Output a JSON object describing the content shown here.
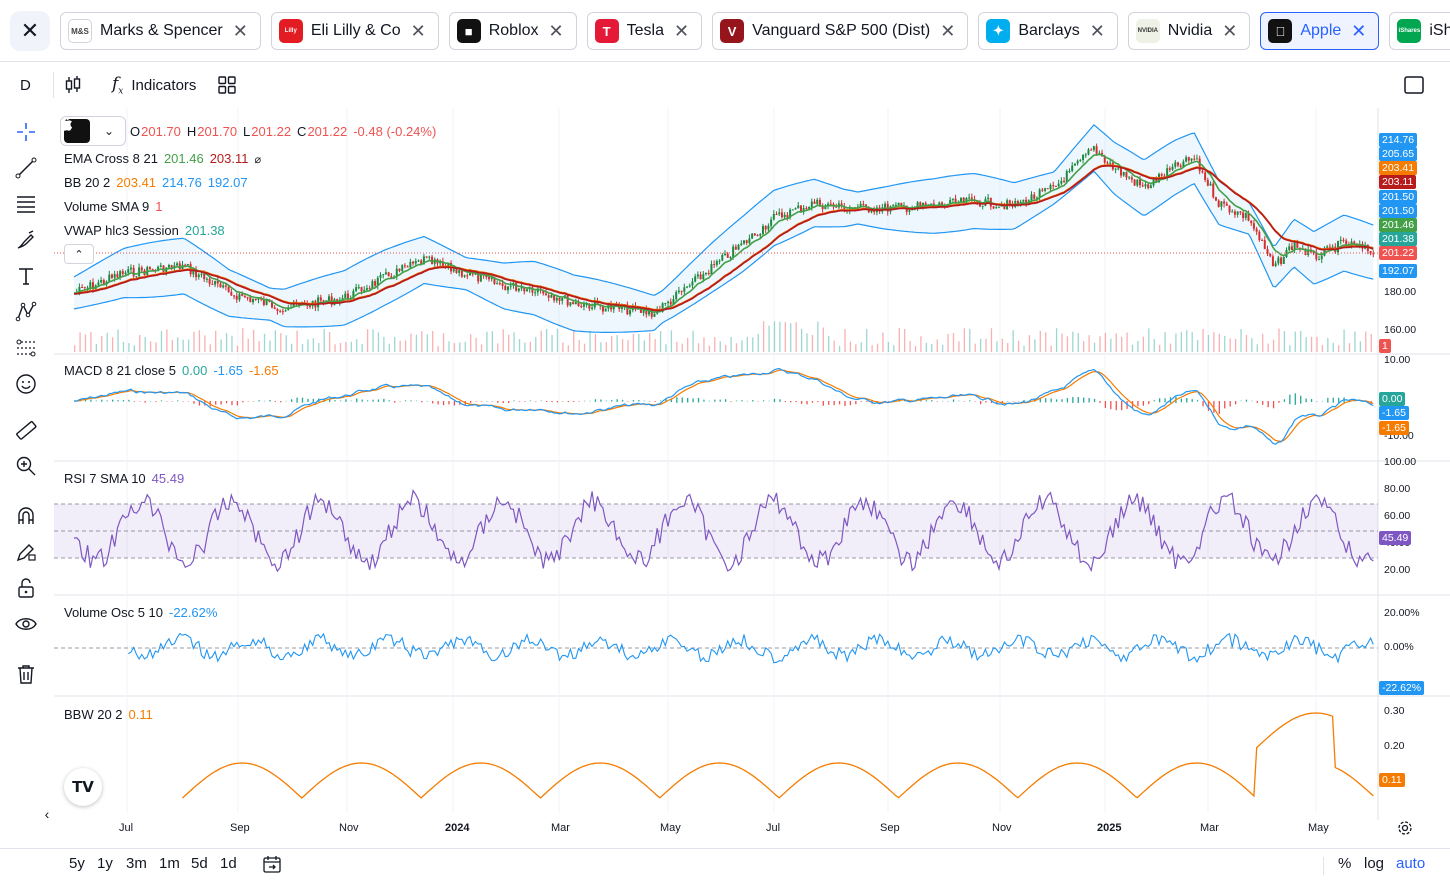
{
  "tabs": [
    {
      "label": "Marks & Spencer",
      "logo": "M&S",
      "color": "#ffffff",
      "fg": "#444"
    },
    {
      "label": "Eli Lilly & Co",
      "logo": "Lilly",
      "color": "#e31b23",
      "fg": "#fff"
    },
    {
      "label": "Roblox",
      "logo": "■",
      "color": "#111111",
      "fg": "#fff"
    },
    {
      "label": "Tesla",
      "logo": "T",
      "color": "#e31937",
      "fg": "#fff"
    },
    {
      "label": "Vanguard S&P 500 (Dist)",
      "logo": "V",
      "color": "#96151d",
      "fg": "#fff"
    },
    {
      "label": "Barclays",
      "logo": "✦",
      "color": "#00aeef",
      "fg": "#fff"
    },
    {
      "label": "Nvidia",
      "logo": "NVIDIA",
      "color": "#eef2e6",
      "fg": "#333"
    },
    {
      "label": "Apple",
      "logo": "",
      "color": "#111111",
      "fg": "#fff",
      "active": true
    },
    {
      "label": "iShares",
      "logo": "iShares",
      "color": "#00a650",
      "fg": "#fff"
    }
  ],
  "toolbar": {
    "interval": "D",
    "indicators_label": "Indicators"
  },
  "ohlc": {
    "o": "201.70",
    "h": "201.70",
    "l": "201.22",
    "c": "201.22",
    "change": "-0.48 (-0.24%)"
  },
  "legends": {
    "ema": {
      "label": "EMA Cross 8 21",
      "v1": "201.46",
      "v2": "203.11",
      "extra": "⌀"
    },
    "bb": {
      "label": "BB 20 2",
      "v1": "203.41",
      "v2": "214.76",
      "v3": "192.07"
    },
    "vol": {
      "label": "Volume SMA 9",
      "v1": "1"
    },
    "vwap": {
      "label": "VWAP hlc3 Session",
      "v1": "201.38"
    },
    "macd": {
      "label": "MACD 8 21 close 5",
      "v1": "0.00",
      "v2": "-1.65",
      "v3": "-1.65"
    },
    "rsi": {
      "label": "RSI 7 SMA 10",
      "v1": "45.49"
    },
    "vosc": {
      "label": "Volume Osc 5 10",
      "v1": "-22.62%"
    },
    "bbw": {
      "label": "BBW 20 2",
      "v1": "0.11"
    }
  },
  "price_axis": {
    "ticks": [
      "180.00",
      "160.00"
    ],
    "labels": [
      {
        "text": "214.76",
        "color": "#2196f3"
      },
      {
        "text": "205.65",
        "color": "#2196f3"
      },
      {
        "text": "203.41",
        "color": "#f57c00"
      },
      {
        "text": "203.11",
        "color": "#b71c1c"
      },
      {
        "text": "201.50",
        "color": "#2196f3"
      },
      {
        "text": "201.50",
        "color": "#2196f3"
      },
      {
        "text": "201.46",
        "color": "#43a047"
      },
      {
        "text": "201.38",
        "color": "#26a69a"
      },
      {
        "text": "201.22",
        "color": "#ef5350"
      },
      {
        "text": "192.07",
        "color": "#2196f3"
      }
    ],
    "volume_label": "1"
  },
  "macd_axis": {
    "ticks": [
      "10.00",
      "-10.00"
    ],
    "labels": [
      {
        "text": "0.00",
        "color": "#26a69a"
      },
      {
        "text": "-1.65",
        "color": "#2196f3"
      },
      {
        "text": "-1.65",
        "color": "#f57c00"
      }
    ]
  },
  "rsi_axis": {
    "ticks": [
      "100.00",
      "80.00",
      "60.00",
      "40.00",
      "20.00"
    ],
    "label": "45.49"
  },
  "vosc_axis": {
    "ticks": [
      "20.00%",
      "0.00%"
    ],
    "label": "-22.62%"
  },
  "bbw_axis": {
    "ticks": [
      "0.30",
      "0.20"
    ],
    "label": "0.11"
  },
  "time_axis": [
    "Jul",
    "Sep",
    "Nov",
    "2024",
    "Mar",
    "May",
    "Jul",
    "Sep",
    "Nov",
    "2025",
    "Mar",
    "May"
  ],
  "ranges": [
    "5y",
    "1y",
    "3m",
    "1m",
    "5d",
    "1d"
  ],
  "scale_options": [
    "%",
    "log",
    "auto"
  ],
  "colors": {
    "up": "#26a69a",
    "down": "#ef5350",
    "accent": "#2962ff",
    "bb": "#2196f3",
    "ema_fast": "#43a047",
    "ema_slow": "#b71c1c",
    "rsi": "#7e57c2",
    "bbw": "#f57c00"
  }
}
